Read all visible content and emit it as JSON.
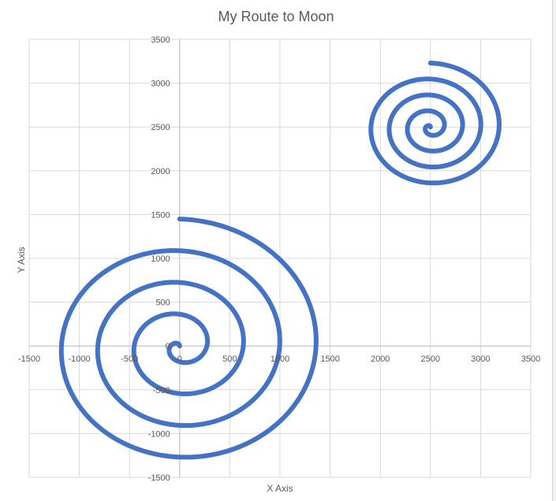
{
  "chart_data": {
    "type": "scatter",
    "title": "My Route to Moon",
    "xlabel": "X Axis",
    "ylabel": "Y Axis",
    "xlim": [
      -1500,
      3500
    ],
    "ylim": [
      -1500,
      3500
    ],
    "x_ticks": [
      -1500,
      -1000,
      -500,
      0,
      500,
      1000,
      1500,
      2000,
      2500,
      3000,
      3500
    ],
    "y_ticks": [
      -1500,
      -1000,
      -500,
      0,
      500,
      1000,
      1500,
      2000,
      2500,
      3000,
      3500
    ],
    "grid": true,
    "legend": "none",
    "series_color": "#4472C4",
    "series": [
      {
        "spiral": "earth",
        "center": [
          0,
          0
        ],
        "start_radius": 0,
        "end_radius": 1450,
        "turns": 4,
        "end_point": [
          0,
          1450
        ]
      },
      {
        "spiral": "moon",
        "center": [
          2500,
          2500
        ],
        "start_radius": 0,
        "end_radius": 730,
        "turns": 4,
        "end_point": [
          2500,
          3230
        ]
      }
    ]
  }
}
